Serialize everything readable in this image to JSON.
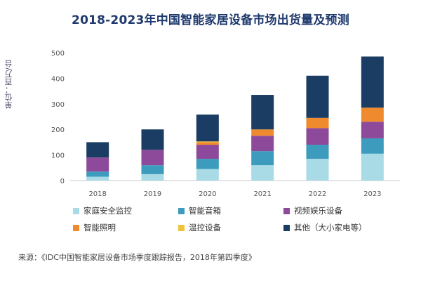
{
  "chart_data": {
    "type": "bar",
    "stacked": true,
    "title": "2018-2023年中国智能家居设备市场出货量及预测",
    "ylabel": "单位：百万/台",
    "ylim": [
      0,
      500
    ],
    "yticks": [
      "0",
      "100",
      "200",
      "300",
      "400",
      "500"
    ],
    "categories": [
      "2018",
      "2019",
      "2020",
      "2021",
      "2022",
      "2023"
    ],
    "series": [
      {
        "name": "家庭安全监控",
        "color": "#a8dbe6",
        "values": [
          15,
          25,
          45,
          60,
          85,
          105
        ]
      },
      {
        "name": "智能音箱",
        "color": "#3d9cbd",
        "values": [
          20,
          35,
          40,
          55,
          55,
          60
        ]
      },
      {
        "name": "视频娱乐设备",
        "color": "#8e4a9a",
        "values": [
          55,
          60,
          55,
          60,
          65,
          65
        ]
      },
      {
        "name": "智能照明",
        "color": "#ef8a2e",
        "values": [
          0,
          0,
          10,
          25,
          40,
          55
        ]
      },
      {
        "name": "温控设备",
        "color": "#f2c23a",
        "values": [
          0,
          0,
          3,
          0,
          0,
          0
        ]
      },
      {
        "name": "其他（大小家电等）",
        "color": "#1b3d63",
        "values": [
          60,
          80,
          105,
          135,
          165,
          200
        ]
      }
    ],
    "grid": false,
    "legend_position": "bottom"
  },
  "source": "来源：《IDC中国智能家居设备市场季度跟踪报告，2018年第四季度》"
}
